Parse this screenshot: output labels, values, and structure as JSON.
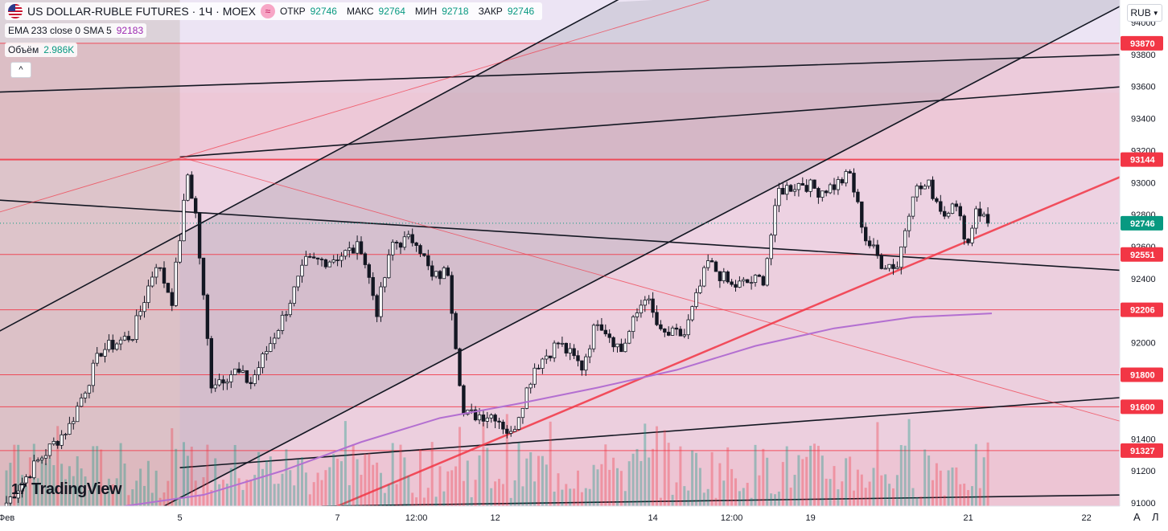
{
  "header": {
    "symbol": "US DOLLAR-RUBLE FUTURES · 1Ч · MOEX",
    "open_label": "ОТКР",
    "open_value": "92746",
    "high_label": "МАКС",
    "high_value": "92764",
    "low_label": "МИН",
    "low_value": "92718",
    "close_label": "ЗАКР",
    "close_value": "92746",
    "indicator": "EMA 233 close 0 SMA 5",
    "indicator_value": "92183",
    "volume_label": "Объём",
    "volume_value": "2.986K",
    "currency": "RUB",
    "collapse": "^"
  },
  "brand": {
    "name": "TradingView"
  },
  "scale_buttons": {
    "auto": "A",
    "log": "Л"
  },
  "colors": {
    "up": "#089981",
    "down": "#f23645",
    "ema": "#b36fd1",
    "level_line": "#f23645",
    "current_price": "#089981"
  },
  "chart_data": {
    "type": "candlestick",
    "title": "",
    "ylim": [
      90980,
      94140
    ],
    "y_ticks": [
      91000,
      91200,
      91400,
      91600,
      91800,
      92000,
      92200,
      92400,
      92600,
      92800,
      93000,
      93200,
      93400,
      93600,
      93800,
      94000
    ],
    "x_tick_labels": [
      {
        "i": 0,
        "label": "Фев"
      },
      {
        "i": 44,
        "label": "5"
      },
      {
        "i": 84,
        "label": "7"
      },
      {
        "i": 104,
        "label": "12:00"
      },
      {
        "i": 124,
        "label": "12"
      },
      {
        "i": 164,
        "label": "14"
      },
      {
        "i": 184,
        "label": "12:00"
      },
      {
        "i": 204,
        "label": "19"
      },
      {
        "i": 244,
        "label": "21"
      },
      {
        "i": 274,
        "label": "22"
      }
    ],
    "x_count": 284,
    "horizontal_levels": [
      {
        "label": "93870",
        "value": 93870
      },
      {
        "label": "93144",
        "value": 93144
      },
      {
        "label": "92551",
        "value": 92551
      },
      {
        "label": "92206",
        "value": 92206
      },
      {
        "label": "91800",
        "value": 91800
      },
      {
        "label": "91600",
        "value": 91600
      },
      {
        "label": "91327",
        "value": 91327
      }
    ],
    "current_price": {
      "label": "92746",
      "value": 92746
    },
    "channel_lines": [
      {
        "i1": -8,
        "y1": 91990,
        "i2": 174,
        "y2": 94390
      },
      {
        "i1": 40,
        "y1": 90980,
        "i2": 284,
        "y2": 94120
      },
      {
        "i1": 44,
        "y1": 93160,
        "i2": 284,
        "y2": 93600
      },
      {
        "i1": -8,
        "y1": 93560,
        "i2": 284,
        "y2": 93800
      },
      {
        "i1": 44,
        "y1": 91220,
        "i2": 284,
        "y2": 91660
      },
      {
        "i1": 80,
        "y1": 90980,
        "i2": 284,
        "y2": 91050
      },
      {
        "i1": -8,
        "y1": 92900,
        "i2": 284,
        "y2": 92450
      }
    ],
    "trend_lines": [
      {
        "i1": 84,
        "y1": 90980,
        "i2": 284,
        "y2": 93050
      },
      {
        "i1": -8,
        "y1": 92770,
        "i2": 200,
        "y2": 94300
      },
      {
        "i1": 44,
        "y1": 93160,
        "i2": 284,
        "y2": 91500
      }
    ],
    "ema": {
      "name": "",
      "points": [
        [
          30,
          90980
        ],
        [
          50,
          91050
        ],
        [
          70,
          91200
        ],
        [
          90,
          91380
        ],
        [
          110,
          91530
        ],
        [
          130,
          91620
        ],
        [
          150,
          91720
        ],
        [
          170,
          91830
        ],
        [
          190,
          91980
        ],
        [
          210,
          92090
        ],
        [
          230,
          92160
        ],
        [
          250,
          92183
        ]
      ]
    },
    "ohlc_count": 250,
    "last_ohlc": {
      "open": 92746,
      "high": 92764,
      "low": 92718,
      "close": 92746
    },
    "anchors": [
      {
        "i": 0,
        "p": 91000
      },
      {
        "i": 8,
        "p": 91260
      },
      {
        "i": 16,
        "p": 91480
      },
      {
        "i": 24,
        "p": 91950
      },
      {
        "i": 32,
        "p": 92050
      },
      {
        "i": 38,
        "p": 92500
      },
      {
        "i": 42,
        "p": 92270
      },
      {
        "i": 46,
        "p": 93050
      },
      {
        "i": 48,
        "p": 92800
      },
      {
        "i": 52,
        "p": 91750
      },
      {
        "i": 58,
        "p": 91820
      },
      {
        "i": 62,
        "p": 91750
      },
      {
        "i": 70,
        "p": 92150
      },
      {
        "i": 76,
        "p": 92500
      },
      {
        "i": 82,
        "p": 92520
      },
      {
        "i": 90,
        "p": 92600
      },
      {
        "i": 94,
        "p": 92200
      },
      {
        "i": 98,
        "p": 92620
      },
      {
        "i": 104,
        "p": 92650
      },
      {
        "i": 108,
        "p": 92400
      },
      {
        "i": 112,
        "p": 92450
      },
      {
        "i": 116,
        "p": 91550
      },
      {
        "i": 124,
        "p": 91550
      },
      {
        "i": 128,
        "p": 91420
      },
      {
        "i": 134,
        "p": 91850
      },
      {
        "i": 140,
        "p": 92000
      },
      {
        "i": 146,
        "p": 91850
      },
      {
        "i": 150,
        "p": 92150
      },
      {
        "i": 156,
        "p": 91950
      },
      {
        "i": 162,
        "p": 92300
      },
      {
        "i": 166,
        "p": 92050
      },
      {
        "i": 172,
        "p": 92050
      },
      {
        "i": 178,
        "p": 92500
      },
      {
        "i": 184,
        "p": 92350
      },
      {
        "i": 192,
        "p": 92400
      },
      {
        "i": 196,
        "p": 92950
      },
      {
        "i": 202,
        "p": 93000
      },
      {
        "i": 206,
        "p": 92950
      },
      {
        "i": 210,
        "p": 92980
      },
      {
        "i": 214,
        "p": 93050
      },
      {
        "i": 218,
        "p": 92650
      },
      {
        "i": 222,
        "p": 92500
      },
      {
        "i": 226,
        "p": 92480
      },
      {
        "i": 230,
        "p": 92950
      },
      {
        "i": 234,
        "p": 92980
      },
      {
        "i": 238,
        "p": 92800
      },
      {
        "i": 240,
        "p": 92900
      },
      {
        "i": 244,
        "p": 92620
      },
      {
        "i": 246,
        "p": 92850
      },
      {
        "i": 249,
        "p": 92746
      }
    ]
  }
}
